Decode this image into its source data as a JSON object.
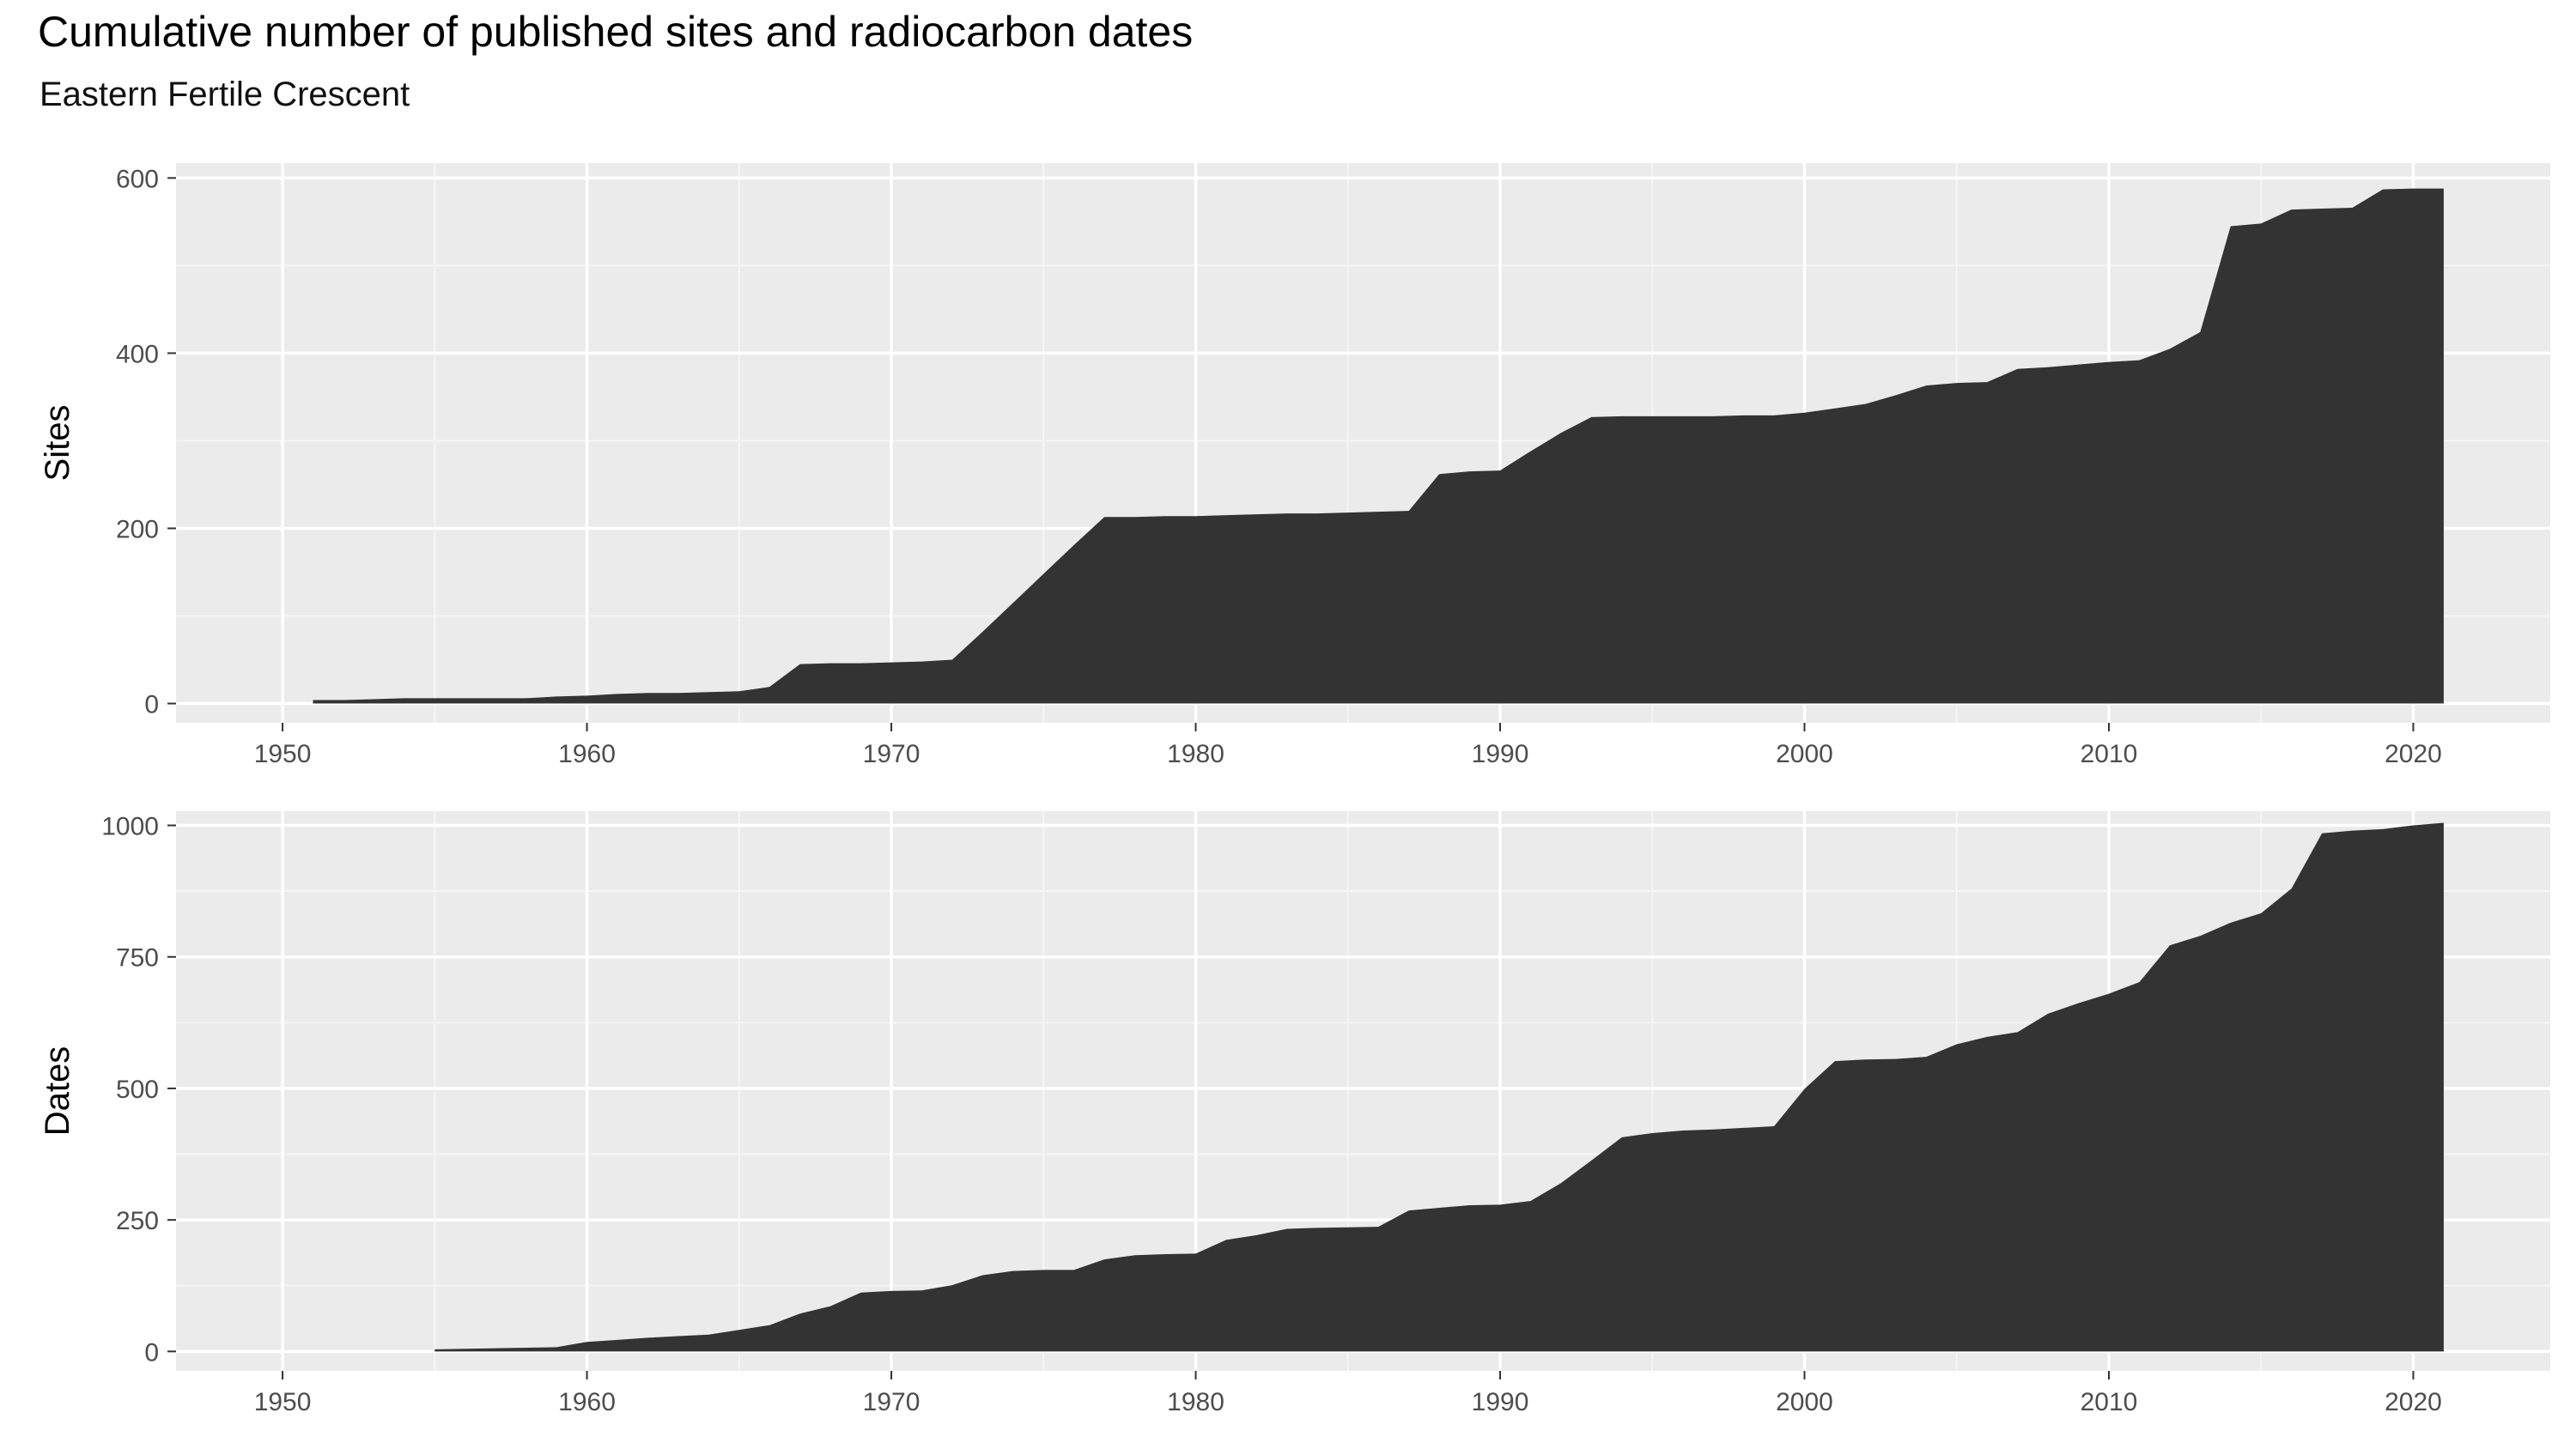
{
  "title": "Cumulative number of published sites and radiocarbon dates",
  "subtitle": "Eastern Fertile Crescent",
  "chart_data": [
    {
      "type": "area",
      "ylabel": "Sites",
      "xlim": [
        1946.5,
        2024.5
      ],
      "ylim": [
        -22,
        617
      ],
      "xticks": [
        1950,
        1960,
        1970,
        1980,
        1990,
        2000,
        2010,
        2020
      ],
      "yticks": [
        0,
        200,
        400,
        600
      ],
      "fill": "#333333",
      "x": [
        1951,
        1952,
        1953,
        1954,
        1955,
        1956,
        1957,
        1958,
        1959,
        1960,
        1961,
        1962,
        1963,
        1964,
        1965,
        1966,
        1967,
        1968,
        1969,
        1970,
        1971,
        1972,
        1973,
        1974,
        1975,
        1976,
        1977,
        1978,
        1979,
        1980,
        1981,
        1982,
        1983,
        1984,
        1985,
        1986,
        1987,
        1988,
        1989,
        1990,
        1991,
        1992,
        1993,
        1994,
        1995,
        1996,
        1997,
        1998,
        1999,
        2000,
        2001,
        2002,
        2003,
        2004,
        2005,
        2006,
        2007,
        2008,
        2009,
        2010,
        2011,
        2012,
        2013,
        2014,
        2015,
        2016,
        2017,
        2018,
        2019,
        2020,
        2021
      ],
      "y": [
        4,
        4,
        5,
        6,
        6,
        6,
        6,
        6,
        8,
        9,
        11,
        12,
        12,
        13,
        14,
        19,
        45,
        46,
        46,
        47,
        48,
        50,
        82,
        115,
        148,
        181,
        213,
        213,
        214,
        214,
        215,
        216,
        217,
        217,
        218,
        219,
        220,
        262,
        265,
        266,
        288,
        309,
        327,
        328,
        328,
        328,
        328,
        329,
        329,
        332,
        337,
        342,
        352,
        363,
        366,
        367,
        382,
        384,
        387,
        390,
        392,
        405,
        424,
        545,
        548,
        564,
        565,
        566,
        587,
        588,
        588
      ]
    },
    {
      "type": "area",
      "ylabel": "Dates",
      "xlim": [
        1946.5,
        2024.5
      ],
      "ylim": [
        -37,
        1027
      ],
      "xticks": [
        1950,
        1960,
        1970,
        1980,
        1990,
        2000,
        2010,
        2020
      ],
      "yticks": [
        0,
        250,
        500,
        750,
        1000
      ],
      "fill": "#333333",
      "x": [
        1955,
        1956,
        1957,
        1958,
        1959,
        1960,
        1961,
        1962,
        1963,
        1964,
        1965,
        1966,
        1967,
        1968,
        1969,
        1970,
        1971,
        1972,
        1973,
        1974,
        1975,
        1976,
        1977,
        1978,
        1979,
        1980,
        1981,
        1982,
        1983,
        1984,
        1985,
        1986,
        1987,
        1988,
        1989,
        1990,
        1991,
        1992,
        1993,
        1994,
        1995,
        1996,
        1997,
        1998,
        1999,
        2000,
        2001,
        2002,
        2003,
        2004,
        2005,
        2006,
        2007,
        2008,
        2009,
        2010,
        2011,
        2012,
        2013,
        2014,
        2015,
        2016,
        2017,
        2018,
        2019,
        2020,
        2021
      ],
      "y": [
        4,
        5,
        6,
        7,
        8,
        18,
        22,
        26,
        29,
        32,
        41,
        50,
        72,
        86,
        112,
        115,
        116,
        126,
        145,
        153,
        155,
        155,
        175,
        183,
        185,
        186,
        212,
        221,
        233,
        235,
        236,
        237,
        268,
        273,
        278,
        279,
        286,
        320,
        363,
        407,
        415,
        420,
        422,
        425,
        428,
        499,
        552,
        555,
        556,
        560,
        584,
        598,
        607,
        642,
        662,
        680,
        702,
        772,
        790,
        815,
        833,
        880,
        985,
        990,
        993,
        1000,
        1005
      ]
    }
  ]
}
